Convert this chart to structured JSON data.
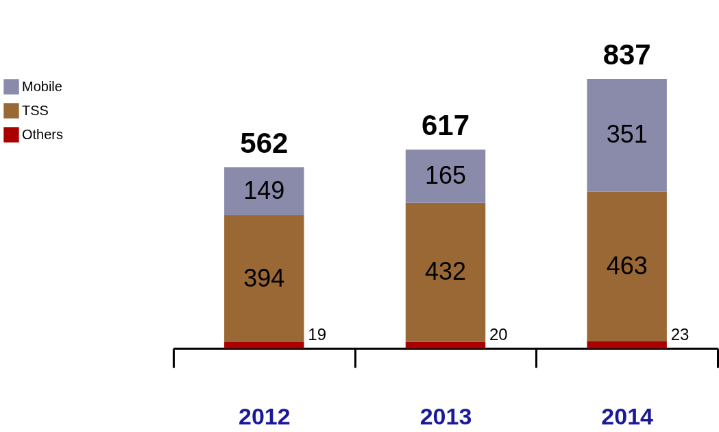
{
  "chart_data": {
    "type": "bar",
    "stacked": true,
    "categories": [
      "2012",
      "2013",
      "2014"
    ],
    "series": [
      {
        "name": "Others",
        "color": "#aa0000",
        "values": [
          19,
          20,
          23
        ]
      },
      {
        "name": "TSS",
        "color": "#9a6834",
        "values": [
          394,
          432,
          463
        ]
      },
      {
        "name": "Mobile",
        "color": "#8a8aab",
        "values": [
          149,
          165,
          351
        ]
      }
    ],
    "data_labels": true,
    "totals": [
      "562",
      "617",
      "837"
    ],
    "legend": "left",
    "grid": false
  }
}
